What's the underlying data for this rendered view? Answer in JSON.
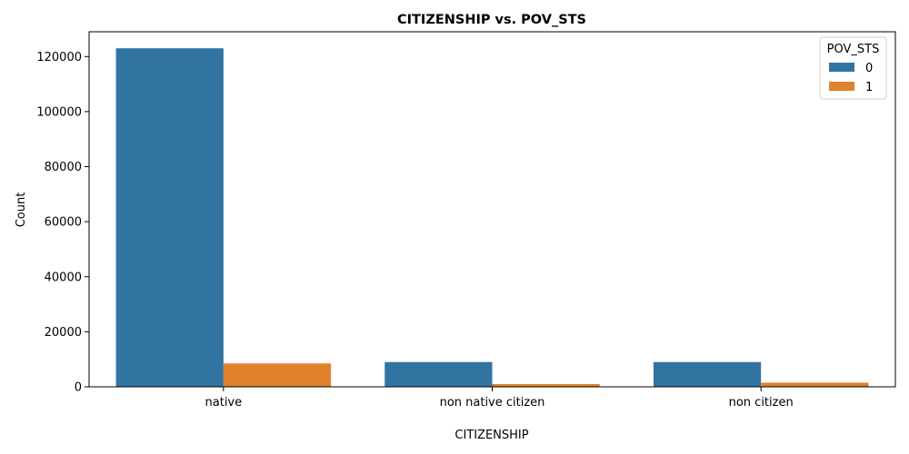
{
  "chart_data": {
    "type": "bar",
    "title": "CITIZENSHIP vs. POV_STS",
    "xlabel": "CITIZENSHIP",
    "ylabel": "Count",
    "categories": [
      "native",
      "non native citizen",
      "non citizen"
    ],
    "series": [
      {
        "name": "0",
        "values": [
          123000,
          9000,
          9000
        ],
        "color": "#3274a1"
      },
      {
        "name": "1",
        "values": [
          8500,
          1000,
          1500
        ],
        "color": "#e1812c"
      }
    ],
    "ylim": [
      0,
      129000
    ],
    "yticks": [
      0,
      20000,
      40000,
      60000,
      80000,
      100000,
      120000
    ],
    "grid": false,
    "legend": {
      "title": "POV_STS",
      "placement": "top-right"
    }
  }
}
